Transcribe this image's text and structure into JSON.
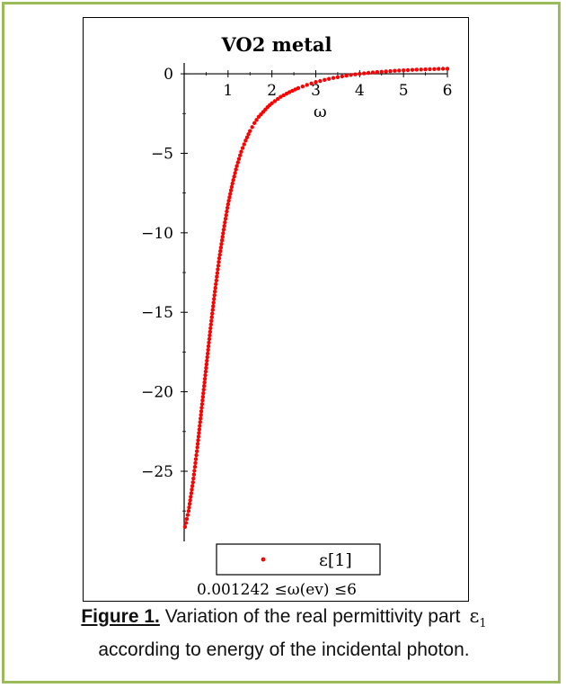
{
  "chart_data": {
    "type": "scatter",
    "title": "VO2 metal",
    "xlabel": "ω",
    "ylabel": "",
    "xlim": [
      0,
      6
    ],
    "ylim": [
      -29.3,
      0.4
    ],
    "x_ticks": [
      1,
      2,
      3,
      4,
      5,
      6
    ],
    "y_ticks": [
      0,
      -5,
      -10,
      -15,
      -20,
      -25
    ],
    "grid": false,
    "legend_position": "bottom-center",
    "legend_label": "ε[1]",
    "range_note": "0.001242 ≤ω(ev) ≤6",
    "marker_color": "#ff0000",
    "series": [
      {
        "name": "ε[1]",
        "x": [
          0.02,
          0.1,
          0.2,
          0.3,
          0.4,
          0.5,
          0.6,
          0.7,
          0.8,
          0.9,
          1.0,
          1.1,
          1.2,
          1.3,
          1.4,
          1.5,
          1.6,
          1.7,
          1.8,
          1.9,
          2.0,
          2.2,
          2.4,
          2.6,
          2.8,
          3.0,
          3.2,
          3.4,
          3.6,
          3.8,
          4.0,
          4.2,
          4.4,
          4.6,
          4.8,
          5.0,
          5.2,
          5.4,
          5.6,
          5.8,
          6.0
        ],
        "y": [
          -28.5,
          -27.5,
          -25.7,
          -23.5,
          -21.0,
          -18.5,
          -16.0,
          -13.7,
          -11.6,
          -9.8,
          -8.2,
          -6.9,
          -5.8,
          -4.9,
          -4.2,
          -3.6,
          -3.1,
          -2.7,
          -2.4,
          -2.1,
          -1.85,
          -1.45,
          -1.15,
          -0.9,
          -0.7,
          -0.52,
          -0.38,
          -0.26,
          -0.16,
          -0.07,
          0.0,
          0.06,
          0.11,
          0.15,
          0.19,
          0.22,
          0.25,
          0.27,
          0.29,
          0.31,
          0.32
        ]
      }
    ]
  },
  "caption": {
    "label": "Figure 1.",
    "text_line1": " Variation of the real permittivity part",
    "symbol": "ε",
    "symbol_sub": "1",
    "text_line2": "according to energy of the incidental photon."
  }
}
